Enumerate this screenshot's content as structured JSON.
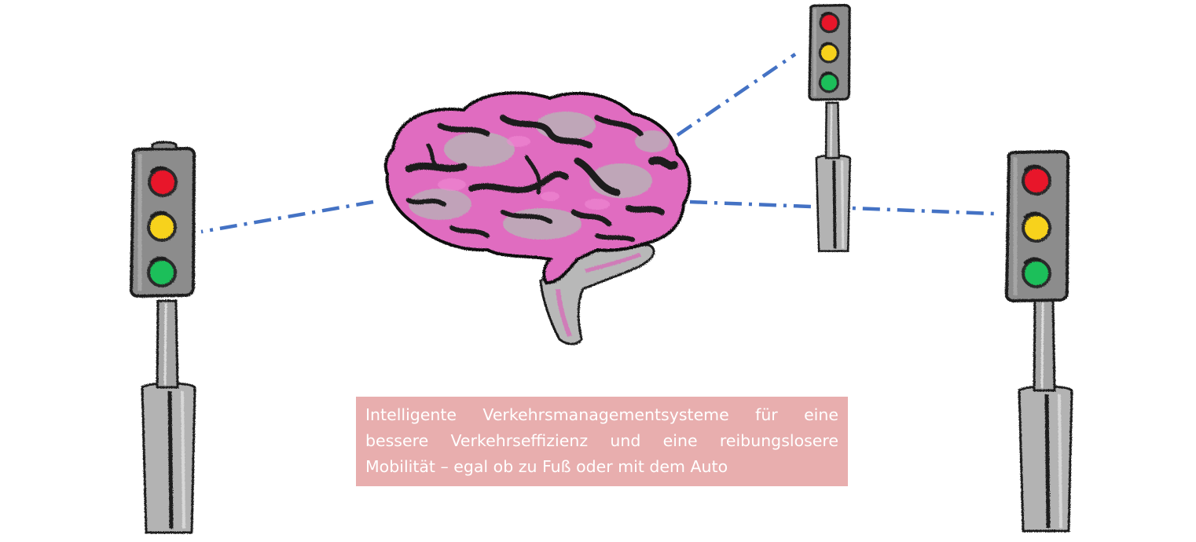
{
  "caption": {
    "text": "Intelligente Verkehrsmanagementsysteme für eine bessere Verkehrseffizienz und eine reibungslosere Mobilität – egal ob zu Fuß oder mit dem Auto"
  },
  "colors": {
    "connection_line": "#4472c4",
    "caption_background": "#e8aeae",
    "caption_text": "#ffffff",
    "brain_pink": "#e06cc0",
    "brain_grey": "#a9a9a9",
    "brain_dark": "#1a1a1a",
    "housing_grey": "#8c8c8c",
    "pole_grey": "#a6a6a6",
    "light_red": "#e8192c",
    "light_yellow": "#f7d21a",
    "light_green": "#1fbf5a"
  },
  "icons": {
    "brain": "brain-icon",
    "traffic_light": "traffic-light-icon"
  }
}
